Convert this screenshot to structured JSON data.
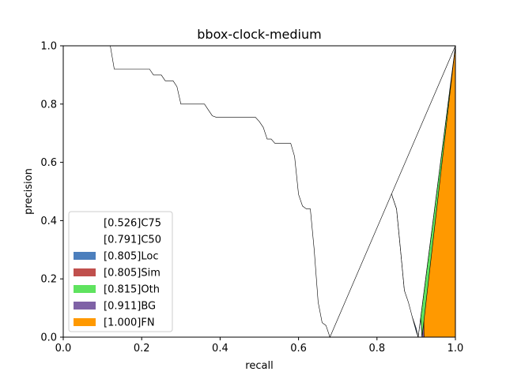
{
  "chart_data": {
    "type": "area",
    "title": "bbox-clock-medium",
    "xlabel": "recall",
    "ylabel": "precision",
    "xlim": [
      0.0,
      1.0
    ],
    "ylim": [
      0.0,
      1.0
    ],
    "xticks": [
      "0.0",
      "0.2",
      "0.4",
      "0.6",
      "0.8",
      "1.0"
    ],
    "yticks": [
      "0.0",
      "0.2",
      "0.4",
      "0.6",
      "0.8",
      "1.0"
    ],
    "grid": false,
    "legend_position": "lower-left",
    "legend": [
      {
        "label": "[0.526]C75",
        "color": "#ffffff"
      },
      {
        "label": "[0.791]C50",
        "color": "#ffffff"
      },
      {
        "label": "[0.805]Loc",
        "color": "#4c7fbd"
      },
      {
        "label": "[0.805]Sim",
        "color": "#c0504d"
      },
      {
        "label": "[0.815]Oth",
        "color": "#5fe35f"
      },
      {
        "label": "[0.911]BG",
        "color": "#7f62a6"
      },
      {
        "label": "[1.000]FN",
        "color": "#ff9900"
      }
    ],
    "series": [
      {
        "name": "FN",
        "color": "#ff9900",
        "points": [
          [
            0.91,
            1.0
          ],
          [
            0.92,
            0.0
          ],
          [
            1.0,
            0.0
          ],
          [
            1.0,
            1.0
          ]
        ]
      },
      {
        "name": "BG",
        "color": "#7f62a6",
        "points": [
          [
            0.36,
            1.0
          ],
          [
            0.37,
            0.98
          ],
          [
            0.47,
            0.98
          ],
          [
            0.48,
            0.97
          ],
          [
            0.5,
            0.97
          ],
          [
            0.52,
            0.96
          ],
          [
            0.55,
            0.96
          ],
          [
            0.57,
            0.95
          ],
          [
            0.6,
            0.95
          ],
          [
            0.62,
            0.92
          ],
          [
            0.64,
            0.9
          ],
          [
            0.66,
            0.89
          ],
          [
            0.68,
            0.89
          ],
          [
            0.7,
            0.88
          ],
          [
            0.74,
            0.88
          ],
          [
            0.75,
            0.87
          ],
          [
            0.76,
            0.87
          ],
          [
            0.77,
            0.85
          ],
          [
            0.78,
            0.82
          ],
          [
            0.79,
            0.78
          ],
          [
            0.8,
            0.73
          ],
          [
            0.82,
            0.73
          ],
          [
            0.83,
            0.7
          ],
          [
            0.84,
            0.68
          ],
          [
            0.845,
            0.65
          ],
          [
            0.85,
            0.6
          ],
          [
            0.86,
            0.55
          ],
          [
            0.87,
            0.5
          ],
          [
            0.88,
            0.4
          ],
          [
            0.89,
            0.3
          ],
          [
            0.9,
            0.2
          ],
          [
            0.91,
            0.1
          ],
          [
            0.915,
            0.0
          ],
          [
            0.92,
            0.0
          ],
          [
            0.91,
            1.0
          ]
        ]
      },
      {
        "name": "Oth",
        "color": "#5fe35f",
        "points": [
          [
            0.62,
            0.915
          ],
          [
            0.64,
            0.895
          ],
          [
            0.66,
            0.885
          ],
          [
            0.68,
            0.885
          ],
          [
            0.7,
            0.875
          ],
          [
            0.74,
            0.875
          ],
          [
            0.75,
            0.865
          ],
          [
            0.76,
            0.865
          ],
          [
            0.77,
            0.845
          ],
          [
            0.78,
            0.815
          ],
          [
            0.79,
            0.775
          ],
          [
            0.8,
            0.72
          ],
          [
            0.82,
            0.72
          ],
          [
            0.83,
            0.69
          ],
          [
            0.84,
            0.665
          ],
          [
            0.845,
            0.64
          ],
          [
            0.85,
            0.595
          ],
          [
            0.86,
            0.545
          ],
          [
            0.87,
            0.49
          ],
          [
            0.88,
            0.39
          ],
          [
            0.89,
            0.29
          ],
          [
            0.9,
            0.19
          ],
          [
            0.91,
            0.09
          ],
          [
            0.915,
            0.0
          ]
        ]
      },
      {
        "name": "Sim",
        "color": "#c0504d",
        "points": [
          [
            0.82,
            0.615
          ],
          [
            0.83,
            0.61
          ]
        ]
      },
      {
        "name": "Loc",
        "color": "#4c7fbd",
        "points": [
          [
            0.62,
            0.91
          ],
          [
            0.64,
            0.89
          ],
          [
            0.66,
            0.88
          ],
          [
            0.68,
            0.88
          ],
          [
            0.7,
            0.87
          ],
          [
            0.74,
            0.87
          ],
          [
            0.75,
            0.86
          ],
          [
            0.76,
            0.85
          ],
          [
            0.77,
            0.82
          ],
          [
            0.78,
            0.77
          ],
          [
            0.79,
            0.67
          ],
          [
            0.8,
            0.66
          ],
          [
            0.81,
            0.66
          ],
          [
            0.82,
            0.61
          ],
          [
            0.83,
            0.6
          ],
          [
            0.835,
            0.54
          ],
          [
            0.84,
            0.48
          ],
          [
            0.85,
            0.44
          ],
          [
            0.86,
            0.3
          ],
          [
            0.87,
            0.16
          ],
          [
            0.88,
            0.14
          ],
          [
            0.89,
            0.07
          ],
          [
            0.9,
            0.02
          ],
          [
            0.905,
            0.0
          ]
        ]
      },
      {
        "name": "C50",
        "color": "#ffffff",
        "points": [
          [
            0.62,
            0.91
          ],
          [
            0.64,
            0.89
          ],
          [
            0.66,
            0.88
          ],
          [
            0.68,
            0.88
          ],
          [
            0.7,
            0.87
          ],
          [
            0.74,
            0.87
          ],
          [
            0.75,
            0.86
          ],
          [
            0.76,
            0.84
          ],
          [
            0.77,
            0.8
          ],
          [
            0.78,
            0.67
          ],
          [
            0.79,
            0.66
          ],
          [
            0.8,
            0.66
          ],
          [
            0.81,
            0.63
          ],
          [
            0.82,
            0.6
          ],
          [
            0.83,
            0.53
          ],
          [
            0.84,
            0.48
          ],
          [
            0.85,
            0.44
          ],
          [
            0.86,
            0.3
          ],
          [
            0.87,
            0.16
          ],
          [
            0.88,
            0.12
          ],
          [
            0.89,
            0.07
          ],
          [
            0.9,
            0.03
          ],
          [
            0.905,
            0.0
          ]
        ]
      },
      {
        "name": "C75",
        "color": "#ffffff",
        "points": [
          [
            0.12,
            1.0
          ],
          [
            0.13,
            0.92
          ],
          [
            0.22,
            0.92
          ],
          [
            0.23,
            0.9
          ],
          [
            0.25,
            0.9
          ],
          [
            0.26,
            0.88
          ],
          [
            0.28,
            0.88
          ],
          [
            0.29,
            0.86
          ],
          [
            0.3,
            0.8
          ],
          [
            0.36,
            0.8
          ],
          [
            0.37,
            0.78
          ],
          [
            0.38,
            0.76
          ],
          [
            0.39,
            0.755
          ],
          [
            0.49,
            0.755
          ],
          [
            0.5,
            0.74
          ],
          [
            0.51,
            0.72
          ],
          [
            0.52,
            0.68
          ],
          [
            0.53,
            0.68
          ],
          [
            0.54,
            0.665
          ],
          [
            0.58,
            0.665
          ],
          [
            0.59,
            0.62
          ],
          [
            0.6,
            0.49
          ],
          [
            0.61,
            0.45
          ],
          [
            0.62,
            0.44
          ],
          [
            0.63,
            0.44
          ],
          [
            0.64,
            0.3
          ],
          [
            0.65,
            0.12
          ],
          [
            0.66,
            0.05
          ],
          [
            0.67,
            0.04
          ],
          [
            0.68,
            0.0
          ]
        ]
      }
    ]
  }
}
